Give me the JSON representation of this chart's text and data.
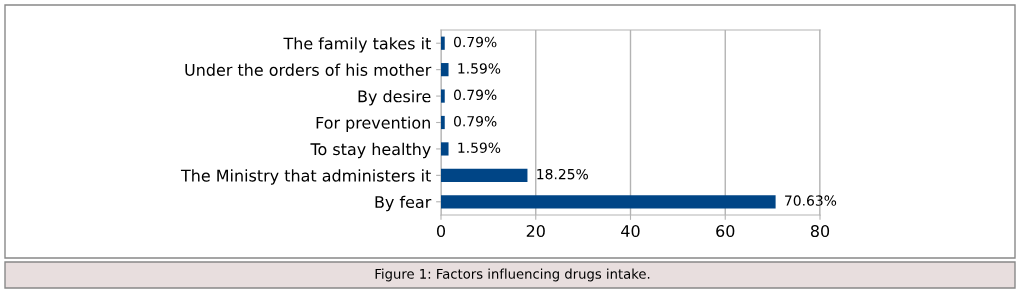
{
  "chart_data": {
    "type": "bar",
    "orientation": "horizontal",
    "categories": [
      "The family takes it",
      "Under the orders of his mother",
      "By desire",
      "For prevention",
      "To stay healthy",
      "The Ministry that administers it",
      "By fear"
    ],
    "values": [
      0.79,
      1.59,
      0.79,
      0.79,
      1.59,
      18.25,
      70.63
    ],
    "value_labels": [
      "0.79%",
      "1.59%",
      "0.79%",
      "0.79%",
      "1.59%",
      "18.25%",
      "70.63%"
    ],
    "color": "#004586",
    "xlim": [
      0,
      80
    ],
    "xticks": [
      0,
      20,
      40,
      60,
      80
    ],
    "grid": "x",
    "legend": false,
    "annotations": [
      "Figure 1: Factors influencing drugs intake."
    ]
  }
}
